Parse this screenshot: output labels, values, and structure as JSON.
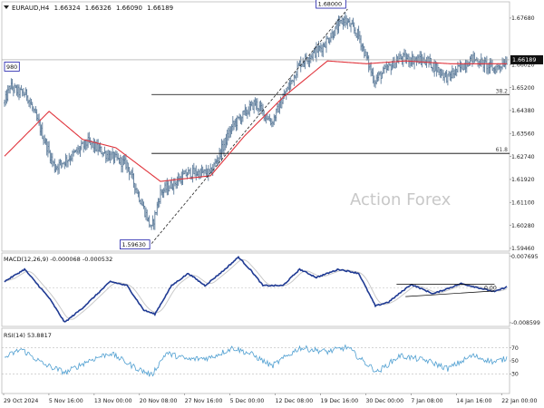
{
  "header": {
    "symbol_tf": "EURAUD,H4",
    "ohlc": [
      "1.66324",
      "1.66326",
      "1.66090",
      "1.66189"
    ]
  },
  "watermark": "Action Forex",
  "colors": {
    "bars": "#5b7a99",
    "ma": "#e0343c",
    "macd": "#1f3a93",
    "signal": "#c9c9c9",
    "rsi": "#4f9fd1",
    "level": "#000000",
    "callout_border": "#1a1aaa",
    "axis_text": "#222222"
  },
  "chart_data": [
    {
      "type": "candlestick",
      "name": "price",
      "y_ticks": [
        {
          "value": 1.6768,
          "label": "1.67680"
        },
        {
          "value": 1.6602,
          "label": "1.66020"
        },
        {
          "value": 1.652,
          "label": "1.65200"
        },
        {
          "value": 1.6438,
          "label": "1.64380"
        },
        {
          "value": 1.6356,
          "label": "1.63560"
        },
        {
          "value": 1.6274,
          "label": "1.62740"
        },
        {
          "value": 1.6192,
          "label": "1.61920"
        },
        {
          "value": 1.611,
          "label": "1.61100"
        },
        {
          "value": 1.6028,
          "label": "1.60280"
        },
        {
          "value": 1.5946,
          "label": "1.59460"
        }
      ],
      "ylim": [
        1.5936,
        1.6826
      ],
      "x_labels": [
        "29 Oct 2024",
        "5 Nov 16:00",
        "13 Nov 00:00",
        "20 Nov 08:00",
        "27 Nov 16:00",
        "5 Dec 00:00",
        "12 Dec 08:00",
        "19 Dec 16:00",
        "30 Dec 00:00",
        "7 Jan 08:00",
        "14 Jan 16:00",
        "22 Jan 00:00"
      ],
      "anchors": [
        {
          "idx": 0,
          "value": 1.6465
        },
        {
          "idx": 5,
          "value": 1.6525
        },
        {
          "idx": 12,
          "value": 1.6505
        },
        {
          "idx": 20,
          "value": 1.6495
        },
        {
          "idx": 30,
          "value": 1.6395
        },
        {
          "idx": 45,
          "value": 1.6235
        },
        {
          "idx": 60,
          "value": 1.6275
        },
        {
          "idx": 75,
          "value": 1.6325
        },
        {
          "idx": 90,
          "value": 1.6285
        },
        {
          "idx": 110,
          "value": 1.6245
        },
        {
          "idx": 132,
          "value": 1.6015
        },
        {
          "idx": 140,
          "value": 1.6145
        },
        {
          "idx": 165,
          "value": 1.6215
        },
        {
          "idx": 185,
          "value": 1.6215
        },
        {
          "idx": 205,
          "value": 1.6385
        },
        {
          "idx": 225,
          "value": 1.6465
        },
        {
          "idx": 240,
          "value": 1.6395
        },
        {
          "idx": 265,
          "value": 1.6605
        },
        {
          "idx": 285,
          "value": 1.6665
        },
        {
          "idx": 305,
          "value": 1.6765
        },
        {
          "idx": 318,
          "value": 1.6705
        },
        {
          "idx": 332,
          "value": 1.6545
        },
        {
          "idx": 355,
          "value": 1.6625
        },
        {
          "idx": 380,
          "value": 1.6615
        },
        {
          "idx": 398,
          "value": 1.6555
        },
        {
          "idx": 420,
          "value": 1.6625
        },
        {
          "idx": 440,
          "value": 1.6585
        },
        {
          "idx": 451,
          "value": 1.6618
        }
      ],
      "ma_anchors": [
        {
          "idx": 0,
          "value": 1.6275
        },
        {
          "idx": 40,
          "value": 1.6435
        },
        {
          "idx": 70,
          "value": 1.6335
        },
        {
          "idx": 100,
          "value": 1.6305
        },
        {
          "idx": 140,
          "value": 1.6185
        },
        {
          "idx": 185,
          "value": 1.6205
        },
        {
          "idx": 215,
          "value": 1.6345
        },
        {
          "idx": 250,
          "value": 1.6485
        },
        {
          "idx": 290,
          "value": 1.6615
        },
        {
          "idx": 325,
          "value": 1.6605
        },
        {
          "idx": 360,
          "value": 1.6615
        },
        {
          "idx": 400,
          "value": 1.6605
        },
        {
          "idx": 451,
          "value": 1.6605
        }
      ],
      "fib_levels": [
        {
          "label": "38.2",
          "value": 1.6495,
          "from_idx": 132
        },
        {
          "label": "61.8",
          "value": 1.6285,
          "from_idx": 132
        }
      ],
      "hline": {
        "label": "1.66189",
        "value": 1.6619
      },
      "trendline": {
        "from": {
          "idx": 132,
          "value": 1.5963
        },
        "to": {
          "idx": 308,
          "value": 1.68
        }
      },
      "callouts": [
        {
          "label": "1.68000",
          "idx": 308,
          "value": 1.68,
          "side": "left"
        },
        {
          "label": "1.59630",
          "idx": 132,
          "value": 1.5963,
          "side": "left"
        },
        {
          "label": "980",
          "idx": 0,
          "value": 1.6598,
          "side": "right"
        }
      ]
    },
    {
      "type": "line",
      "name": "MACD(12,26,9)",
      "label": "MACD(12,26,9) -0.000068 -0.000532",
      "y_ticks": [
        {
          "value": 0.007695,
          "label": "0.007695"
        },
        {
          "value": 0.0,
          "label": "0.00"
        },
        {
          "value": -0.008599,
          "label": "-0.008599"
        }
      ],
      "ylim": [
        -0.0095,
        0.0085
      ],
      "anchors": [
        {
          "idx": 0,
          "value": 0.0015
        },
        {
          "idx": 18,
          "value": 0.0045
        },
        {
          "idx": 40,
          "value": -0.0025
        },
        {
          "idx": 54,
          "value": -0.0085
        },
        {
          "idx": 70,
          "value": -0.005
        },
        {
          "idx": 95,
          "value": 0.0015
        },
        {
          "idx": 110,
          "value": 0.0005
        },
        {
          "idx": 125,
          "value": -0.0055
        },
        {
          "idx": 135,
          "value": -0.0065
        },
        {
          "idx": 150,
          "value": 0.0005
        },
        {
          "idx": 165,
          "value": 0.0035
        },
        {
          "idx": 180,
          "value": 0.0005
        },
        {
          "idx": 198,
          "value": 0.0045
        },
        {
          "idx": 210,
          "value": 0.0075
        },
        {
          "idx": 222,
          "value": 0.004
        },
        {
          "idx": 232,
          "value": 0.0005
        },
        {
          "idx": 250,
          "value": 0.0005
        },
        {
          "idx": 265,
          "value": 0.0045
        },
        {
          "idx": 280,
          "value": 0.0025
        },
        {
          "idx": 300,
          "value": 0.0045
        },
        {
          "idx": 318,
          "value": 0.0035
        },
        {
          "idx": 333,
          "value": -0.0045
        },
        {
          "idx": 345,
          "value": -0.0035
        },
        {
          "idx": 365,
          "value": 0.0008
        },
        {
          "idx": 385,
          "value": -0.0015
        },
        {
          "idx": 410,
          "value": 0.001
        },
        {
          "idx": 440,
          "value": -0.001
        },
        {
          "idx": 451,
          "value": 0.0002
        }
      ],
      "signal_lag": 9,
      "channel": [
        {
          "from": {
            "idx": 352,
            "value": 0.0008
          },
          "to": {
            "idx": 440,
            "value": 0.0008
          }
        },
        {
          "from": {
            "idx": 360,
            "value": -0.0022
          },
          "to": {
            "idx": 440,
            "value": -0.0008
          }
        }
      ]
    },
    {
      "type": "line",
      "name": "RSI(14)",
      "label": "RSI(14) 53.8817",
      "y_ticks": [
        {
          "value": 100,
          "label": "100"
        },
        {
          "value": 70,
          "label": "70"
        },
        {
          "value": 50,
          "label": "50"
        },
        {
          "value": 30,
          "label": "30"
        },
        {
          "value": 0,
          "label": "0"
        }
      ],
      "levels": [
        70,
        30
      ],
      "ylim": [
        0,
        100
      ],
      "anchors": [
        {
          "idx": 0,
          "value": 55
        },
        {
          "idx": 15,
          "value": 68
        },
        {
          "idx": 35,
          "value": 45
        },
        {
          "idx": 55,
          "value": 32
        },
        {
          "idx": 75,
          "value": 50
        },
        {
          "idx": 95,
          "value": 62
        },
        {
          "idx": 115,
          "value": 42
        },
        {
          "idx": 132,
          "value": 28
        },
        {
          "idx": 145,
          "value": 62
        },
        {
          "idx": 165,
          "value": 52
        },
        {
          "idx": 185,
          "value": 55
        },
        {
          "idx": 205,
          "value": 70
        },
        {
          "idx": 222,
          "value": 60
        },
        {
          "idx": 240,
          "value": 42
        },
        {
          "idx": 265,
          "value": 70
        },
        {
          "idx": 290,
          "value": 64
        },
        {
          "idx": 308,
          "value": 71
        },
        {
          "idx": 320,
          "value": 52
        },
        {
          "idx": 335,
          "value": 33
        },
        {
          "idx": 355,
          "value": 58
        },
        {
          "idx": 380,
          "value": 50
        },
        {
          "idx": 398,
          "value": 38
        },
        {
          "idx": 420,
          "value": 58
        },
        {
          "idx": 440,
          "value": 48
        },
        {
          "idx": 451,
          "value": 54
        }
      ]
    }
  ]
}
